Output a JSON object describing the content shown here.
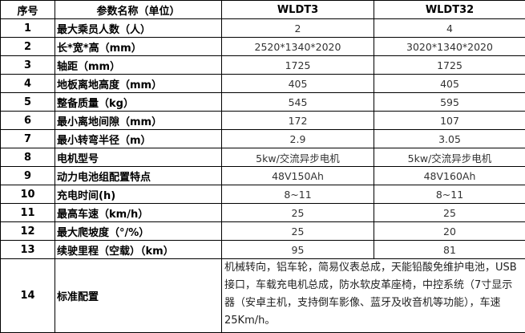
{
  "header": {
    "no": "序号",
    "param": "参数名称（单位）",
    "model1": "WLDT3",
    "model2": "WLDT32"
  },
  "rows": [
    {
      "no": "1",
      "param": "最大乘员人数（人）",
      "v1": "2",
      "v2": "4"
    },
    {
      "no": "2",
      "param": "长*宽*高（mm）",
      "v1": "2520*1340*2020",
      "v2": "3020*1340*2020"
    },
    {
      "no": "3",
      "param": "轴距（mm）",
      "v1": "1725",
      "v2": "1725"
    },
    {
      "no": "4",
      "param": "地板离地高度（mm）",
      "v1": "405",
      "v2": "405"
    },
    {
      "no": "5",
      "param": "整备质量（kg）",
      "v1": "545",
      "v2": "595"
    },
    {
      "no": "6",
      "param": "最小离地间隙（mm）",
      "v1": "172",
      "v2": "107"
    },
    {
      "no": "7",
      "param": "最小转弯半径（m）",
      "v1": "2.9",
      "v2": "3.05"
    },
    {
      "no": "8",
      "param": "电机型号",
      "v1": "5kw/交流异步电机",
      "v2": "5kw/交流异步电机"
    },
    {
      "no": "9",
      "param": "动力电池组配置特点",
      "v1": "48V150Ah",
      "v2": "48V160Ah"
    },
    {
      "no": "10",
      "param": "充电时间(h)",
      "v1": "8~11",
      "v2": "8~11"
    },
    {
      "no": "11",
      "param": "最高车速（km/h）",
      "v1": "25",
      "v2": "25"
    },
    {
      "no": "12",
      "param": "最大爬坡度（°/%）",
      "v1": "25",
      "v2": "20"
    },
    {
      "no": "13",
      "param": "续驶里程（空载）（km）",
      "v1": "95",
      "v2": "81"
    }
  ],
  "standard": {
    "no": "14",
    "param": "标准配置",
    "value": "机械转向，铝车轮，简易仪表总成，天能铅酸免维护电池，USB接口，车载充电机总成，防水软皮革座椅，中控系统（7寸显示器（安卓主机，支持倒车影像、蓝牙及收音机等功能），车速25Km/h。"
  }
}
